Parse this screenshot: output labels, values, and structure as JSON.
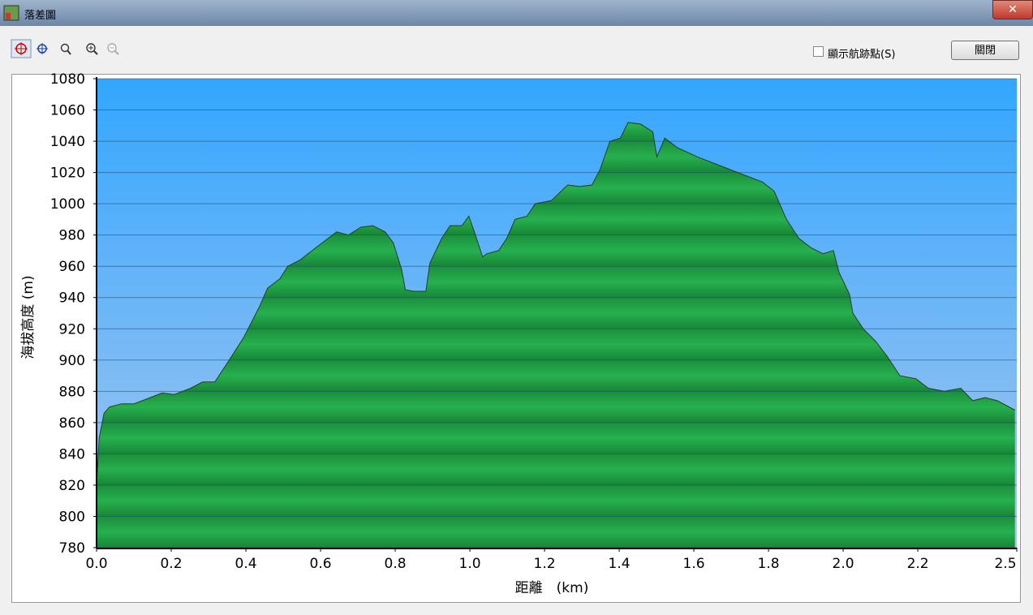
{
  "window": {
    "title": "落差圖"
  },
  "toolbar": {
    "checkbox_label": "顯示航跡點(S)",
    "button": "關閉"
  },
  "chart_data": {
    "type": "area",
    "xlabel": "距離　(km)",
    "ylabel": "海拔高度 (m)",
    "x": [
      0,
      0.007,
      0.02,
      0.035,
      0.067,
      0.1,
      0.133,
      0.176,
      0.208,
      0.252,
      0.284,
      0.317,
      0.35,
      0.393,
      0.436,
      0.458,
      0.491,
      0.512,
      0.545,
      0.588,
      0.621,
      0.643,
      0.675,
      0.708,
      0.74,
      0.773,
      0.795,
      0.817,
      0.827,
      0.849,
      0.882,
      0.893,
      0.925,
      0.947,
      0.979,
      0.997,
      1.012,
      1.034,
      1.045,
      1.077,
      1.099,
      1.121,
      1.153,
      1.175,
      1.218,
      1.262,
      1.294,
      1.327,
      1.349,
      1.375,
      1.403,
      1.424,
      1.457,
      1.49,
      1.501,
      1.522,
      1.555,
      1.609,
      1.674,
      1.739,
      1.783,
      1.815,
      1.848,
      1.881,
      1.913,
      1.946,
      1.974,
      1.989,
      2.017,
      2.026,
      2.054,
      2.087,
      2.119,
      2.152,
      2.195,
      2.228,
      2.271,
      2.315,
      2.347,
      2.38,
      2.413,
      2.46
    ],
    "values": [
      820,
      850,
      866,
      870,
      872,
      872,
      875,
      879,
      878,
      882,
      886,
      886,
      898,
      914,
      934,
      946,
      952,
      960,
      964,
      972,
      978,
      982,
      980,
      985,
      986,
      982,
      975,
      958,
      945,
      944,
      944,
      962,
      978,
      986,
      986,
      992,
      982,
      966,
      968,
      970,
      978,
      990,
      992,
      1000,
      1002,
      1012,
      1011,
      1012,
      1022,
      1040,
      1042,
      1052,
      1051,
      1046,
      1030,
      1042,
      1036,
      1030,
      1024,
      1018,
      1014,
      1008,
      990,
      978,
      972,
      968,
      970,
      956,
      942,
      930,
      920,
      912,
      902,
      890,
      888,
      882,
      880,
      882,
      874,
      876,
      874,
      868
    ],
    "color": "#1fa84a",
    "xlim": [
      0,
      2.465
    ],
    "xticks": [
      {
        "value": 0,
        "label": "0.0"
      },
      0.2,
      0.4,
      0.6,
      0.8,
      {
        "value": 1,
        "label": "1.0"
      },
      1.2,
      1.4,
      1.6,
      1.8,
      {
        "value": 2,
        "label": "2.0"
      },
      2.2,
      {
        "value": 2.465,
        "label": "2.5"
      }
    ],
    "ylim": [
      780,
      1080
    ],
    "yticks": [
      780,
      800,
      820,
      840,
      860,
      880,
      900,
      920,
      940,
      960,
      980,
      1000,
      1020,
      1040,
      1060,
      1080
    ],
    "grid": true
  }
}
